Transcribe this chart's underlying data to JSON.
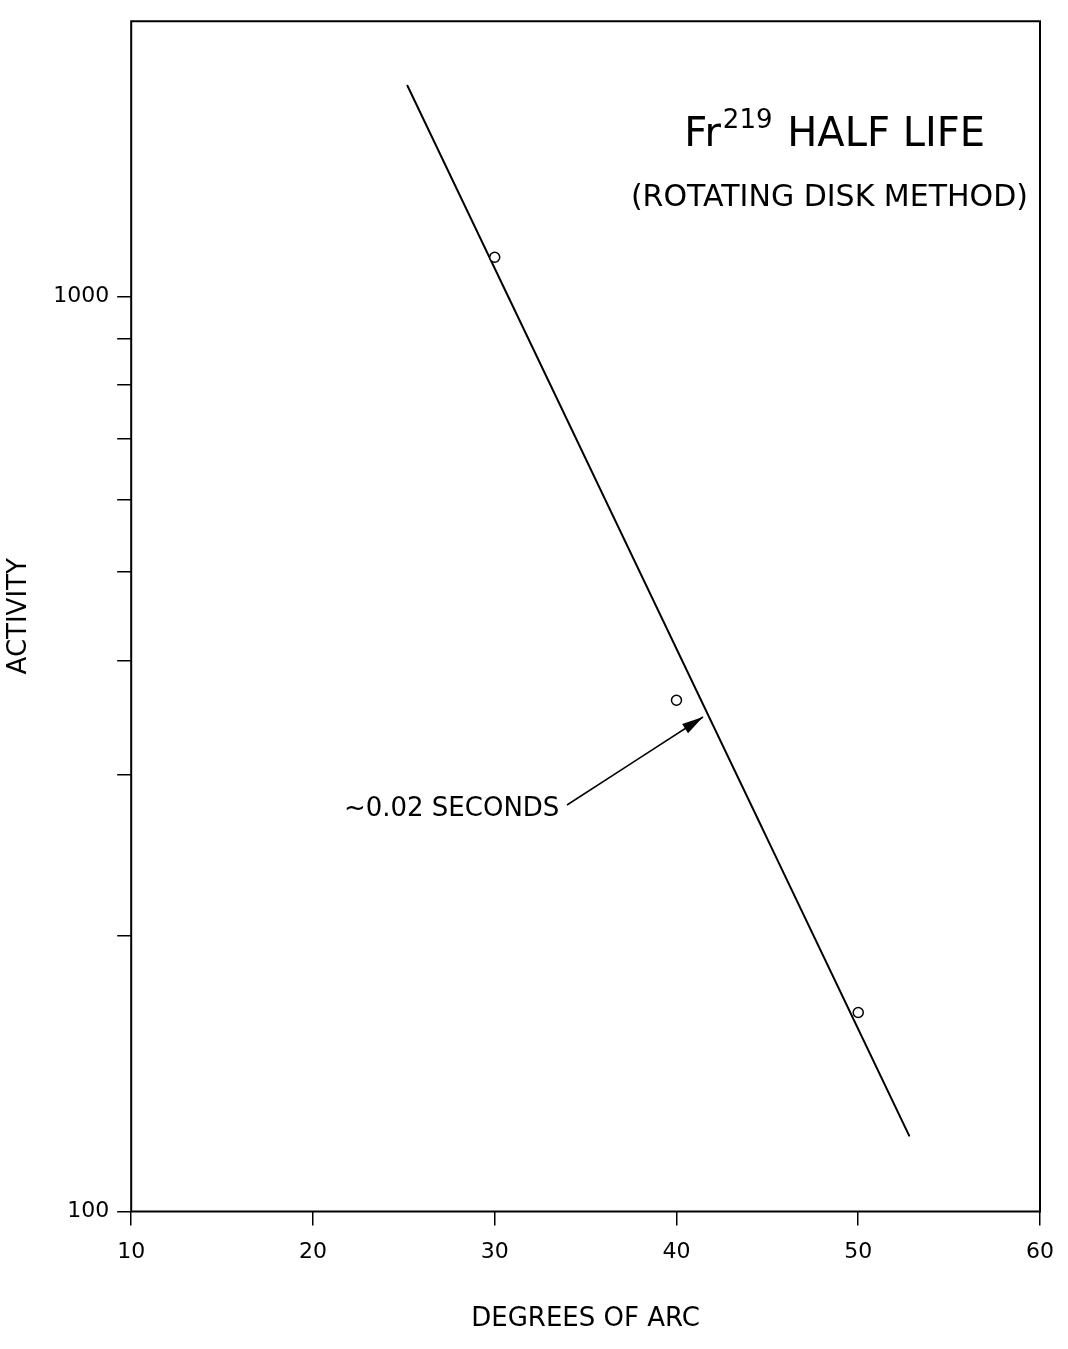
{
  "chart_data": {
    "type": "scatter",
    "title": "Fr$^{219}$ HALF LIFE",
    "subtitle": "(ROTATING DISK METHOD)",
    "xlabel": "DEGREES OF ARC",
    "ylabel": "ACTIVITY",
    "log": "y",
    "grid": false,
    "legend": false,
    "marker": "circle",
    "xlim": [
      10,
      60
    ],
    "xticks": [
      10,
      20,
      30,
      40,
      50,
      60
    ],
    "ylim": [
      100,
      2000
    ],
    "yticks": [
      100,
      {
        "value": 200,
        "label": null
      },
      {
        "value": 300,
        "label": null
      },
      {
        "value": 400,
        "label": null
      },
      {
        "value": 500,
        "label": null
      },
      {
        "value": 600,
        "label": null
      },
      {
        "value": 700,
        "label": null
      },
      {
        "value": 800,
        "label": null
      },
      {
        "value": 900,
        "label": null
      },
      1000
    ],
    "series": [
      {
        "color": "#000000",
        "x": [
          30,
          40,
          50
        ],
        "values": [
          1104,
          362,
          165
        ]
      },
      {
        "type": "line",
        "color": "#000000",
        "marker": "none",
        "line_style": "solid",
        "x": [
          25.2,
          52.8
        ],
        "values": [
          1700,
          121
        ]
      }
    ],
    "annotations": [
      {
        "text": "~0.02 SECONDS",
        "x": 41.7,
        "y": 349
      }
    ]
  }
}
